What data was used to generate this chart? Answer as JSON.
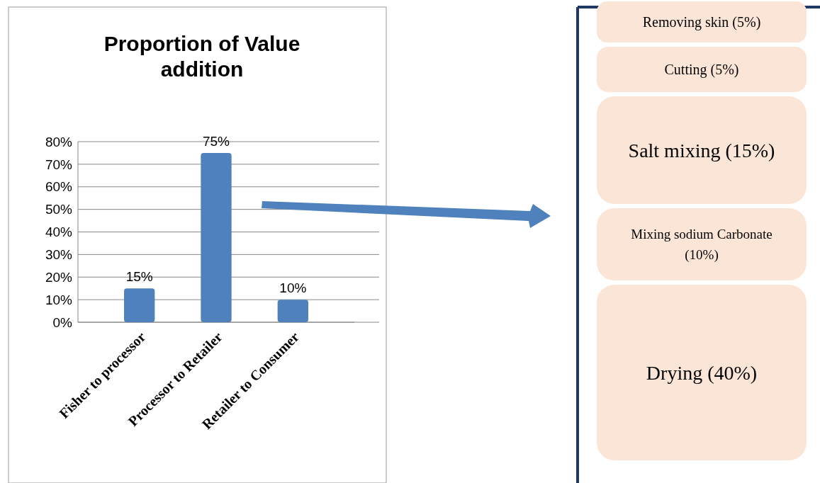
{
  "chart_data": [
    {
      "type": "bar",
      "title": "Proportion of Value addition",
      "categories": [
        "Fisher to processor",
        "Processor to Retailer",
        "Retailer to Consumer"
      ],
      "values": [
        15,
        75,
        10
      ],
      "value_labels": [
        "15%",
        "75%",
        "10%"
      ],
      "color": "#4f81bd",
      "ylim": [
        0,
        80
      ],
      "yticks": [
        {
          "value": 0,
          "label": "0%"
        },
        {
          "value": 10,
          "label": "10%"
        },
        {
          "value": 20,
          "label": "20%"
        },
        {
          "value": 30,
          "label": "30%"
        },
        {
          "value": 40,
          "label": "40%"
        },
        {
          "value": 50,
          "label": "50%"
        },
        {
          "value": 60,
          "label": "60%"
        },
        {
          "value": 70,
          "label": "70%"
        },
        {
          "value": 80,
          "label": "80%"
        }
      ],
      "grid": "y"
    },
    {
      "type": "other",
      "categories": [
        "Removing skin (5%)",
        "Cutting (5%)",
        "Salt mixing (15%)",
        "Mixing sodium Carbonate (10%)",
        "Drying (40%)"
      ],
      "color": "#fbe5d6"
    }
  ]
}
